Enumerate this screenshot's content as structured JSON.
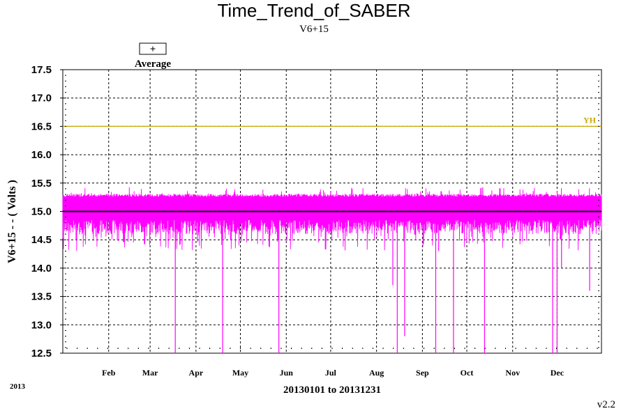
{
  "chart_data": {
    "type": "line",
    "title": "Time_Trend_of_SABER",
    "subtitle": "V6+15",
    "xlabel": "20130101 to 20131231",
    "ylabel": "V6+15 - - ( Volts )",
    "ylim": [
      12.5,
      17.5
    ],
    "yticks": [
      "17.5",
      "17.0",
      "16.5",
      "16.0",
      "15.5",
      "15.0",
      "14.5",
      "14.0",
      "13.5",
      "13.0",
      "12.5"
    ],
    "xlim": [
      "2013-01-01",
      "2013-12-31"
    ],
    "month_ticks": [
      {
        "label": "Feb",
        "date": "2013-02-01"
      },
      {
        "label": "Mar",
        "date": "2013-03-01"
      },
      {
        "label": "Apr",
        "date": "2013-04-01"
      },
      {
        "label": "May",
        "date": "2013-05-01"
      },
      {
        "label": "Jun",
        "date": "2013-06-01"
      },
      {
        "label": "Jul",
        "date": "2013-07-01"
      },
      {
        "label": "Aug",
        "date": "2013-08-01"
      },
      {
        "label": "Sep",
        "date": "2013-09-01"
      },
      {
        "label": "Oct",
        "date": "2013-10-01"
      },
      {
        "label": "Nov",
        "date": "2013-11-01"
      },
      {
        "label": "Dec",
        "date": "2013-12-01"
      }
    ],
    "grid": true,
    "series": [
      {
        "name": "Average",
        "color": "#ff00ff",
        "marker": "+",
        "baseline": 15.0,
        "typical_high": 15.3,
        "typical_low": 14.6
      }
    ],
    "mean_line": {
      "value": 15.0,
      "color": "#000000"
    },
    "limit_lines": [
      {
        "label": "YH",
        "value": 16.5,
        "color": "#c8a800"
      }
    ],
    "dropouts": [
      {
        "date": "2013-03-18",
        "value": 12.5
      },
      {
        "date": "2013-04-19",
        "value": 12.5
      },
      {
        "date": "2013-05-27",
        "value": 12.5
      },
      {
        "date": "2013-08-12",
        "value": 13.7
      },
      {
        "date": "2013-08-15",
        "value": 12.5
      },
      {
        "date": "2013-08-20",
        "value": 12.8
      },
      {
        "date": "2013-09-10",
        "value": 12.5
      },
      {
        "date": "2013-09-12",
        "value": 14.3
      },
      {
        "date": "2013-09-22",
        "value": 12.5
      },
      {
        "date": "2013-10-13",
        "value": 12.5
      },
      {
        "date": "2013-11-28",
        "value": 12.5
      },
      {
        "date": "2013-12-01",
        "value": 12.5
      },
      {
        "date": "2013-12-04",
        "value": 14.0
      },
      {
        "date": "2013-12-23",
        "value": 13.6
      }
    ],
    "legend": {
      "symbol": "+",
      "label": "Average",
      "placement": "top-left"
    }
  },
  "footer": {
    "year": "2013",
    "version": "v2.2"
  }
}
